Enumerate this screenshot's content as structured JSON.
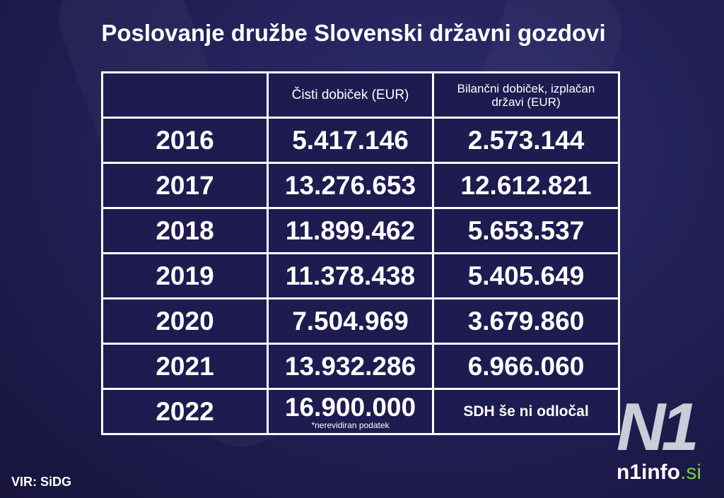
{
  "header": {
    "title": "Poslovanje družbe Slovenski državni gozdovi"
  },
  "table": {
    "columns": [
      "",
      "Čisti dobiček (EUR)",
      "Bilančni dobiček, izplačan državi (EUR)"
    ],
    "rows": [
      [
        "2016",
        "5.417.146",
        "2.573.144"
      ],
      [
        "2017",
        "13.276.653",
        "12.612.821"
      ],
      [
        "2018",
        "11.899.462",
        "5.653.537"
      ],
      [
        "2019",
        "11.378.438",
        "5.405.649"
      ],
      [
        "2020",
        "7.504.969",
        "3.679.860"
      ],
      [
        "2021",
        "13.932.286",
        "6.966.060"
      ],
      [
        "2022",
        "16.900.000",
        "SDH še ni odločal"
      ]
    ],
    "note": "*nerevidiran podatek"
  },
  "footer": {
    "source": "VIR: SiDG",
    "logo": {
      "mark": "N1",
      "site": "n1info",
      "domain": ".si"
    }
  }
}
